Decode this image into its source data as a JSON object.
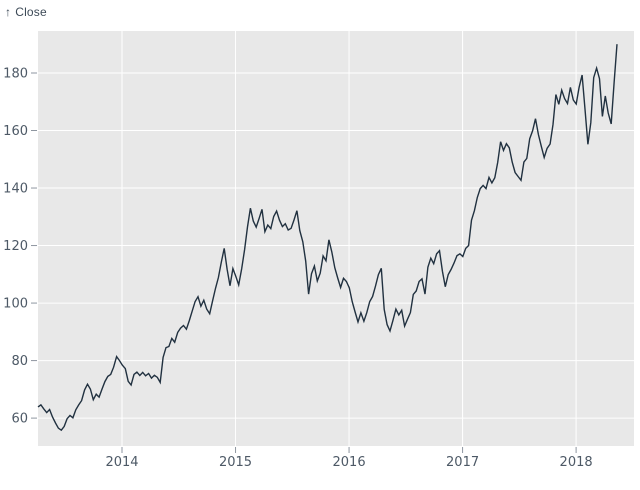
{
  "chart_data": {
    "type": "line",
    "y_axis_label": "Close",
    "icons": {
      "up_arrow": "↑"
    },
    "x_ticks": [
      2014,
      2015,
      2016,
      2017,
      2018
    ],
    "y_ticks": [
      60,
      80,
      100,
      120,
      140,
      160,
      180
    ],
    "x_domain_years": [
      2013.26,
      2018.51
    ],
    "data_x_years": [
      2013.26,
      2018.36
    ],
    "y_domain": [
      50.3,
      194.6
    ],
    "grid": true,
    "legend": "none",
    "values": [
      63.9,
      64.6,
      63.2,
      61.9,
      63.0,
      60.4,
      58.3,
      56.5,
      55.8,
      57.1,
      59.8,
      60.9,
      60.1,
      62.9,
      64.6,
      66.1,
      69.8,
      71.8,
      70.1,
      66.4,
      68.3,
      67.3,
      70.1,
      72.7,
      74.5,
      75.2,
      77.7,
      81.4,
      80.0,
      78.4,
      77.2,
      72.8,
      71.5,
      75.2,
      76.0,
      74.8,
      75.9,
      74.7,
      75.5,
      73.9,
      74.9,
      74.2,
      72.4,
      81.1,
      84.5,
      84.9,
      87.7,
      86.4,
      89.8,
      91.3,
      92.2,
      90.9,
      93.9,
      97.2,
      100.5,
      102.2,
      98.9,
      101.0,
      97.9,
      96.3,
      100.8,
      105.1,
      108.9,
      114.2,
      119.0,
      111.8,
      106.0,
      112.0,
      109.3,
      106.3,
      112.0,
      118.6,
      126.5,
      133.0,
      128.5,
      126.4,
      129.4,
      132.6,
      124.8,
      127.1,
      125.9,
      130.1,
      132.0,
      128.8,
      126.6,
      127.6,
      125.4,
      126.0,
      128.9,
      132.1,
      125.2,
      121.3,
      114.6,
      103.1,
      110.2,
      112.9,
      107.7,
      110.4,
      116.4,
      114.7,
      122.0,
      117.8,
      112.3,
      108.7,
      105.4,
      108.6,
      107.5,
      105.3,
      100.5,
      96.9,
      93.4,
      96.6,
      93.7,
      96.7,
      100.5,
      102.3,
      105.9,
      109.9,
      112.1,
      97.8,
      92.5,
      90.3,
      93.9,
      97.9,
      95.9,
      97.5,
      92.0,
      94.4,
      96.7,
      103.0,
      104.2,
      107.5,
      108.4,
      103.1,
      112.5,
      115.6,
      113.7,
      117.1,
      118.2,
      111.1,
      105.7,
      109.9,
      111.7,
      113.9,
      116.5,
      117.1,
      116.2,
      119.0,
      120.0,
      128.8,
      132.1,
      136.7,
      139.8,
      140.9,
      139.8,
      143.7,
      141.8,
      143.6,
      148.9,
      156.1,
      153.1,
      155.4,
      154.0,
      149.0,
      145.4,
      144.0,
      142.7,
      149.0,
      150.3,
      157.1,
      159.9,
      164.1,
      158.6,
      154.5,
      150.6,
      153.8,
      155.3,
      162.1,
      172.5,
      169.1,
      174.0,
      171.1,
      169.4,
      175.0,
      170.6,
      169.2,
      175.0,
      179.3,
      167.4,
      155.2,
      162.7,
      178.4,
      181.7,
      178.0,
      164.9,
      172.0,
      166.1,
      162.3,
      176.6,
      190.0
    ]
  },
  "colors": {
    "line": "#213140",
    "plot_bg": "#e8e8e8",
    "grid": "#ffffff",
    "tick": "#8e96a0",
    "tick_label": "#4d5966",
    "axis_label": "#3d4a57",
    "page_bg": "#ffffff"
  }
}
